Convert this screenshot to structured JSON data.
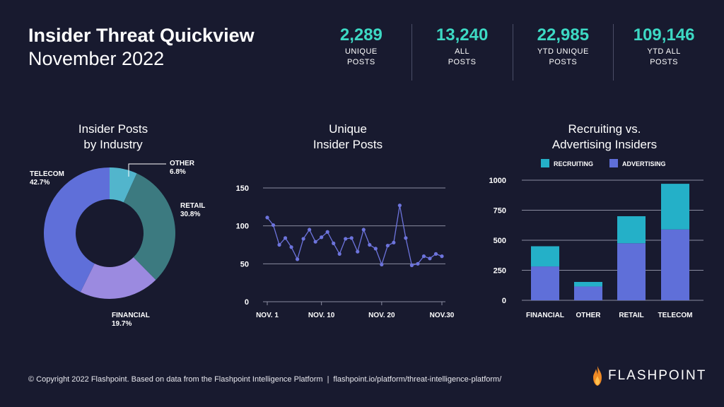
{
  "header": {
    "title": "Insider Threat Quickview",
    "subtitle": "November 2022"
  },
  "stats": [
    {
      "value": "2,289",
      "label1": "UNIQUE",
      "label2": "POSTS"
    },
    {
      "value": "13,240",
      "label1": "ALL",
      "label2": "POSTS"
    },
    {
      "value": "22,985",
      "label1": "YTD UNIQUE",
      "label2": "POSTS"
    },
    {
      "value": "109,146",
      "label1": "YTD ALL",
      "label2": "POSTS"
    }
  ],
  "colors": {
    "accent": "#3dd9c4",
    "background": "#181a2f",
    "telecom": "#5f6fd9",
    "other": "#52b5cc",
    "retail": "#3c7a80",
    "financial": "#9b8ae0",
    "line": "#6d74dd",
    "recruiting": "#24b0c8",
    "advertising": "#5f6fd9",
    "grid": "#8a8ca0"
  },
  "chart_data": [
    {
      "type": "pie",
      "title": [
        "Insider Posts",
        "by Industry"
      ],
      "categories": [
        "OTHER",
        "RETAIL",
        "FINANCIAL",
        "TELECOM"
      ],
      "values": [
        6.8,
        30.8,
        19.7,
        42.7
      ],
      "value_labels": [
        "6.8%",
        "30.8%",
        "19.7%",
        "42.7%"
      ]
    },
    {
      "type": "line",
      "title": [
        "Unique",
        "Insider Posts"
      ],
      "x": [
        "NOV. 1",
        "NOV. 2",
        "NOV. 3",
        "NOV. 4",
        "NOV. 5",
        "NOV. 6",
        "NOV. 7",
        "NOV. 8",
        "NOV. 9",
        "NOV. 10",
        "NOV. 11",
        "NOV. 12",
        "NOV. 13",
        "NOV. 14",
        "NOV. 15",
        "NOV. 16",
        "NOV. 17",
        "NOV. 18",
        "NOV. 19",
        "NOV. 20",
        "NOV. 21",
        "NOV. 22",
        "NOV. 23",
        "NOV. 24",
        "NOV. 25",
        "NOV. 26",
        "NOV. 27",
        "NOV. 28",
        "NOV. 29",
        "NOV. 30"
      ],
      "x_tick_labels": [
        "NOV. 1",
        "NOV. 10",
        "NOV. 20",
        "NOV.30"
      ],
      "x_tick_index": [
        0,
        9,
        19,
        29
      ],
      "series": [
        {
          "values": [
            111,
            101,
            75,
            84,
            72,
            56,
            83,
            95,
            79,
            85,
            92,
            77,
            63,
            83,
            84,
            66,
            95,
            75,
            70,
            49,
            74,
            78,
            127,
            84,
            48,
            50,
            60,
            57,
            63,
            60
          ]
        }
      ],
      "yticks": [
        0,
        50,
        100,
        150
      ],
      "ylim": [
        0,
        150
      ]
    },
    {
      "type": "bar",
      "title": [
        "Recruiting vs.",
        "Advertising Insiders"
      ],
      "stacked": true,
      "categories": [
        "FINANCIAL",
        "OTHER",
        "RETAIL",
        "TELECOM"
      ],
      "series": [
        {
          "name": "ADVERTISING",
          "values": [
            282,
            115,
            475,
            590
          ]
        },
        {
          "name": "RECRUITING",
          "values": [
            168,
            38,
            225,
            380
          ]
        }
      ],
      "legend_order": [
        "RECRUITING",
        "ADVERTISING"
      ],
      "legend": "top",
      "yticks": [
        0,
        250,
        500,
        750,
        1000
      ],
      "ylim": [
        0,
        1000
      ]
    }
  ],
  "footer": {
    "copyright": "© Copyright 2022 Flashpoint. Based on data from the Flashpoint Intelligence Platform",
    "separator": "|",
    "url": "flashpoint.io/platform/threat-intelligence-platform/"
  },
  "brand": {
    "name": "FLASHPOINT",
    "icon": "flame-icon"
  }
}
